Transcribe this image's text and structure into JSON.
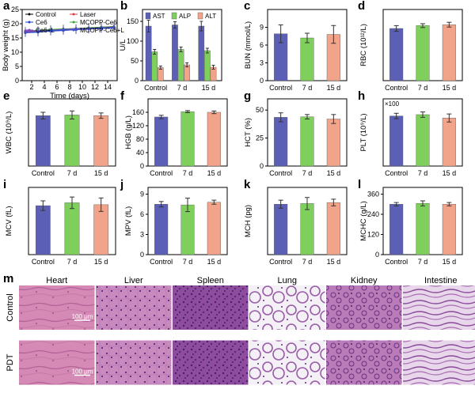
{
  "colors": {
    "control": "#5b5fb5",
    "d7": "#7fcf5c",
    "d15": "#f2a48a",
    "ast": "#5b5fb5",
    "alp": "#7fcf5c",
    "alt": "#f2a48a",
    "line_control": "#000000",
    "line_laser": "#e23b3b",
    "line_ce6": "#1f3fd1",
    "line_mcopp": "#3aa53a",
    "line_ce6l": "#8a3ad1",
    "line_mcoppl": "#3a55c8",
    "tissue_pink": "#d98bb8",
    "tissue_purple": "#7a3f8f"
  },
  "chart_data": [
    {
      "panel": "a",
      "type": "line",
      "xlabel": "Time (days)",
      "ylabel": "Body weight (g)",
      "xlim": [
        0.5,
        15.5
      ],
      "ylim": [
        0,
        25
      ],
      "xticks": [
        2,
        4,
        6,
        8,
        10,
        12,
        14
      ],
      "yticks": [
        0,
        5,
        10,
        15,
        20,
        25
      ],
      "x": [
        1,
        3,
        5,
        7,
        9,
        11,
        13,
        15
      ],
      "legend": [
        "Control",
        "Laser",
        "Ce6",
        "MCOPP-Ce6",
        "Ce6+L",
        "MCOPP-Ce6+L"
      ],
      "series": [
        {
          "name": "Control",
          "values": [
            17.2,
            17.6,
            17.9,
            18.1,
            18.3,
            18.5,
            18.8,
            19.0
          ],
          "errors": [
            1.5,
            1.5,
            1.5,
            1.5,
            1.5,
            1.5,
            1.5,
            1.5
          ]
        },
        {
          "name": "Laser",
          "values": [
            17.0,
            17.3,
            17.5,
            17.8,
            18.0,
            18.2,
            18.4,
            18.6
          ],
          "errors": [
            1.5,
            1.5,
            1.5,
            1.5,
            1.5,
            1.5,
            1.5,
            1.5
          ]
        },
        {
          "name": "Ce6",
          "values": [
            16.8,
            17.0,
            17.4,
            17.6,
            17.9,
            18.1,
            18.3,
            18.5
          ],
          "errors": [
            1.5,
            1.5,
            1.5,
            1.5,
            1.5,
            1.5,
            1.5,
            1.5
          ]
        },
        {
          "name": "MCOPP-Ce6",
          "values": [
            17.5,
            17.7,
            18.0,
            18.2,
            18.3,
            18.6,
            18.8,
            18.9
          ],
          "errors": [
            1.5,
            1.5,
            1.5,
            1.5,
            1.5,
            1.5,
            1.5,
            1.5
          ]
        },
        {
          "name": "Ce6+L",
          "values": [
            17.3,
            17.5,
            17.7,
            18.0,
            18.2,
            18.4,
            18.6,
            18.8
          ],
          "errors": [
            1.5,
            1.5,
            1.5,
            1.5,
            1.5,
            1.5,
            1.5,
            1.5
          ]
        },
        {
          "name": "MCOPP-Ce6+L",
          "values": [
            16.9,
            17.2,
            17.6,
            17.8,
            18.0,
            18.2,
            18.5,
            18.7
          ],
          "errors": [
            1.5,
            1.5,
            1.5,
            1.5,
            1.5,
            1.5,
            1.5,
            1.5
          ]
        }
      ]
    },
    {
      "panel": "b",
      "type": "bar",
      "xlabel": "",
      "ylabel": "U/L",
      "ylim": [
        0,
        180
      ],
      "yticks": [
        0,
        50,
        100,
        150
      ],
      "categories": [
        "Control",
        "7 d",
        "15 d"
      ],
      "legend": [
        "AST",
        "ALP",
        "ALT"
      ],
      "series": [
        {
          "name": "AST",
          "values": [
            138,
            141,
            138
          ],
          "errors": [
            15,
            8,
            12
          ]
        },
        {
          "name": "ALP",
          "values": [
            73,
            79,
            76
          ],
          "errors": [
            6,
            6,
            6
          ]
        },
        {
          "name": "ALT",
          "values": [
            33,
            40,
            34
          ],
          "errors": [
            4,
            5,
            5
          ]
        }
      ]
    },
    {
      "panel": "c",
      "type": "bar",
      "ylabel": "BUN (mmol/L)",
      "ylim": [
        0,
        12
      ],
      "yticks": [
        0,
        3,
        6,
        9
      ],
      "categories": [
        "Control",
        "7 d",
        "15 d"
      ],
      "values": [
        7.9,
        7.2,
        7.8
      ],
      "errors": [
        1.5,
        0.8,
        1.5
      ]
    },
    {
      "panel": "d",
      "type": "bar",
      "ylabel": "RBC (10¹²/L)",
      "ylim": [
        0,
        15
      ],
      "yticks": [],
      "categories": [
        "Control",
        "7 d",
        "15 d"
      ],
      "values": [
        11.0,
        11.6,
        11.8
      ],
      "errors": [
        0.6,
        0.4,
        0.5
      ]
    },
    {
      "panel": "e",
      "type": "bar",
      "ylabel": "WBC (10⁹/L)",
      "ylim": [
        0,
        10
      ],
      "yticks": [],
      "categories": [
        "Control",
        "7 d",
        "15 d"
      ],
      "values": [
        7.5,
        7.6,
        7.5
      ],
      "errors": [
        0.5,
        0.6,
        0.4
      ]
    },
    {
      "panel": "f",
      "type": "bar",
      "ylabel": "HGB (g/L)",
      "ylim": [
        0,
        200
      ],
      "yticks": [
        0,
        40,
        80,
        120,
        160
      ],
      "categories": [
        "Control",
        "7 d",
        "15 d"
      ],
      "values": [
        146,
        162,
        160
      ],
      "errors": [
        5,
        3,
        4
      ]
    },
    {
      "panel": "g",
      "type": "bar",
      "ylabel": "HCT (%)",
      "ylim": [
        0,
        60
      ],
      "yticks": [
        0,
        25,
        50
      ],
      "categories": [
        "Control",
        "7 d",
        "15 d"
      ],
      "values": [
        43.5,
        44,
        42
      ],
      "errors": [
        4,
        2,
        4
      ]
    },
    {
      "panel": "h",
      "type": "bar",
      "ylabel": "PLT (10⁹/L)",
      "ylim": [
        0,
        20
      ],
      "yticks": [],
      "annotation": "×100",
      "categories": [
        "Control",
        "7 d",
        "15 d"
      ],
      "values": [
        14.9,
        15.3,
        14.3
      ],
      "errors": [
        0.8,
        0.8,
        1.2
      ]
    },
    {
      "panel": "i",
      "type": "bar",
      "ylabel": "MCV (fL)",
      "ylim": [
        0,
        70
      ],
      "yticks": [],
      "categories": [
        "Control",
        "7 d",
        "15 d"
      ],
      "values": [
        51,
        54,
        52
      ],
      "errors": [
        5,
        6,
        7
      ]
    },
    {
      "panel": "j",
      "type": "bar",
      "ylabel": "MPV (fL)",
      "ylim": [
        0,
        10
      ],
      "yticks": [
        0,
        3,
        6,
        9
      ],
      "categories": [
        "Control",
        "7 d",
        "15 d"
      ],
      "values": [
        7.5,
        7.4,
        7.8
      ],
      "errors": [
        0.4,
        1.0,
        0.3
      ]
    },
    {
      "panel": "k",
      "type": "bar",
      "ylabel": "MCH (pg)",
      "ylim": [
        0,
        20
      ],
      "yticks": [],
      "categories": [
        "Control",
        "7 d",
        "15 d"
      ],
      "values": [
        15,
        15.2,
        15.5
      ],
      "errors": [
        1.2,
        1.8,
        1.0
      ]
    },
    {
      "panel": "l",
      "type": "bar",
      "ylabel": "MCHC (g/L)",
      "ylim": [
        0,
        400
      ],
      "yticks": [
        0,
        120,
        240,
        360
      ],
      "categories": [
        "Control",
        "7 d",
        "15 d"
      ],
      "values": [
        300,
        305,
        300
      ],
      "errors": [
        10,
        15,
        10
      ]
    }
  ],
  "histology": {
    "panel": "m",
    "organs": [
      "Heart",
      "Liver",
      "Spleen",
      "Lung",
      "Kidney",
      "Intestine"
    ],
    "rows": [
      "Control",
      "PDT"
    ],
    "scale_bar_label": "100 μm"
  }
}
